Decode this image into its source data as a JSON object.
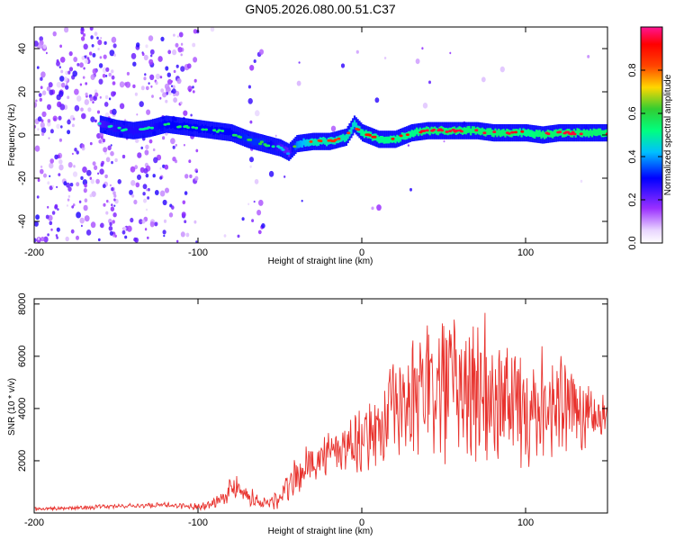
{
  "figure": {
    "title": "GN05.2026.080.00.51.C37"
  },
  "chart_data": [
    {
      "id": "spectrogram",
      "type": "heatmap",
      "title": "GN05.2026.080.00.51.C37",
      "xlabel": "Height of straight line (km)",
      "ylabel": "Frequency (Hz)",
      "xlim": [
        -200,
        150
      ],
      "ylim": [
        -50,
        50
      ],
      "x_ticks": [
        -200,
        -100,
        0,
        100
      ],
      "y_ticks": [
        -40,
        -20,
        0,
        20,
        40
      ],
      "grid": false,
      "colorbar": {
        "label": "Normalized spectral amplitude",
        "range": [
          0,
          1
        ],
        "ticks": [
          0.0,
          0.2,
          0.4,
          0.6,
          0.8
        ],
        "colors": [
          "#ffffff",
          "#e8d4ff",
          "#9b30ff",
          "#0000ff",
          "#00bfff",
          "#00ff7f",
          "#32cd32",
          "#ffd700",
          "#ff4500",
          "#ff0000",
          "#ff1493"
        ]
      },
      "ridge": {
        "name": "dominant frequency",
        "x": [
          -160,
          -150,
          -140,
          -130,
          -120,
          -110,
          -100,
          -90,
          -80,
          -70,
          -60,
          -50,
          -45,
          -40,
          -30,
          -20,
          -10,
          -5,
          0,
          10,
          20,
          30,
          40,
          50,
          60,
          70,
          80,
          90,
          100,
          110,
          120,
          130,
          140,
          150
        ],
        "y": [
          5,
          3,
          2,
          3,
          5,
          4,
          3,
          2,
          1,
          -2,
          -4,
          -6,
          -8,
          -4,
          -3,
          -3,
          -1,
          5,
          1,
          -2,
          -2,
          1,
          2,
          2,
          2,
          2,
          1,
          1,
          1,
          0,
          1,
          1,
          1,
          1
        ],
        "amplitude": [
          0.4,
          0.45,
          0.45,
          0.45,
          0.5,
          0.5,
          0.5,
          0.5,
          0.5,
          0.55,
          0.55,
          0.4,
          0.35,
          0.65,
          0.8,
          0.8,
          0.8,
          0.75,
          0.85,
          0.85,
          0.85,
          0.85,
          0.9,
          0.9,
          0.9,
          0.9,
          0.9,
          0.9,
          0.85,
          0.9,
          0.9,
          0.9,
          0.9,
          0.9
        ]
      }
    },
    {
      "id": "snr",
      "type": "line",
      "xlabel": "Height of straight line (km)",
      "ylabel": "SNR (10 * v/v)",
      "xlim": [
        -200,
        150
      ],
      "ylim": [
        0,
        8200
      ],
      "x_ticks": [
        -200,
        -100,
        0,
        100
      ],
      "y_ticks": [
        2000,
        4000,
        6000,
        8000
      ],
      "grid": false,
      "color": "#e8322d",
      "series": [
        {
          "x": [
            -200,
            -180,
            -160,
            -140,
            -120,
            -100,
            -90,
            -80,
            -75,
            -70,
            -60,
            -50,
            -45,
            -40,
            -30,
            -20,
            -10,
            0,
            10,
            20,
            30,
            40,
            50,
            60,
            70,
            80,
            90,
            100,
            110,
            120,
            130,
            140,
            150
          ],
          "y": [
            150,
            180,
            230,
            280,
            300,
            250,
            400,
            900,
            1100,
            700,
            350,
            500,
            1000,
            1400,
            2000,
            2200,
            2600,
            2800,
            3200,
            4000,
            4300,
            4600,
            4700,
            4600,
            4700,
            4400,
            4300,
            4200,
            4300,
            4100,
            3900,
            3800,
            3700
          ],
          "amplitude": [
            60,
            60,
            70,
            70,
            80,
            100,
            200,
            400,
            450,
            300,
            200,
            400,
            500,
            600,
            700,
            800,
            900,
            1000,
            1200,
            1600,
            2000,
            2400,
            2600,
            2500,
            2600,
            2400,
            2300,
            2100,
            1800,
            1600,
            1400,
            1000,
            700
          ]
        }
      ]
    }
  ]
}
